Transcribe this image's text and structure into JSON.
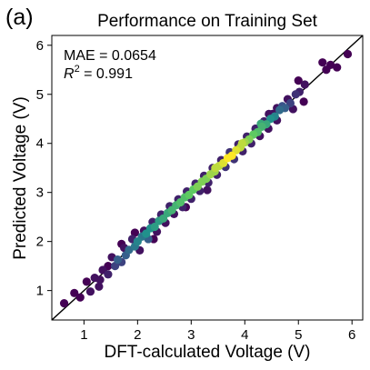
{
  "chart_data": {
    "type": "scatter",
    "panel_label": "(a)",
    "title": "Performance on Training Set",
    "xlabel": "DFT-calculated Voltage (V)",
    "ylabel": "Predicted Voltage (V)",
    "xlim": [
      0.4,
      6.2
    ],
    "ylim": [
      0.4,
      6.2
    ],
    "xticks": [
      1,
      2,
      3,
      4,
      5,
      6
    ],
    "yticks": [
      1,
      2,
      3,
      4,
      5,
      6
    ],
    "annotations": {
      "mae": "MAE = 0.0654",
      "r2_symbol": "R",
      "r2_exponent": "2",
      "r2_value": " = 0.991"
    },
    "parity_line": {
      "from": [
        0.4,
        0.4
      ],
      "to": [
        6.2,
        6.2
      ]
    },
    "grid": false,
    "legend": "none",
    "colormap": "viridis (point density)",
    "colors": {
      "low_density": "#440154",
      "mid_low": "#3b528b",
      "mid": "#21918c",
      "mid_high": "#5ec962",
      "high_density": "#fde725",
      "parity_line": "#000000"
    },
    "series": [
      {
        "points": [
          {
            "x": 0.63,
            "y": 0.74,
            "d": 0.0
          },
          {
            "x": 0.82,
            "y": 0.95,
            "d": 0.0
          },
          {
            "x": 0.93,
            "y": 0.86,
            "d": 0.0
          },
          {
            "x": 1.05,
            "y": 1.18,
            "d": 0.0
          },
          {
            "x": 1.12,
            "y": 0.98,
            "d": 0.05
          },
          {
            "x": 1.2,
            "y": 1.26,
            "d": 0.05
          },
          {
            "x": 1.28,
            "y": 1.08,
            "d": 0.05
          },
          {
            "x": 1.35,
            "y": 1.42,
            "d": 0.05
          },
          {
            "x": 1.45,
            "y": 1.33,
            "d": 0.1
          },
          {
            "x": 1.52,
            "y": 1.68,
            "d": 0.05
          },
          {
            "x": 1.58,
            "y": 1.5,
            "d": 0.2
          },
          {
            "x": 1.63,
            "y": 1.63,
            "d": 0.3
          },
          {
            "x": 1.7,
            "y": 1.58,
            "d": 0.2
          },
          {
            "x": 1.75,
            "y": 1.87,
            "d": 0.05
          },
          {
            "x": 1.78,
            "y": 1.72,
            "d": 0.3
          },
          {
            "x": 1.84,
            "y": 1.83,
            "d": 0.35
          },
          {
            "x": 1.9,
            "y": 2.05,
            "d": 0.1
          },
          {
            "x": 1.95,
            "y": 1.9,
            "d": 0.4
          },
          {
            "x": 2.0,
            "y": 2.0,
            "d": 0.45
          },
          {
            "x": 2.04,
            "y": 1.82,
            "d": 0.05
          },
          {
            "x": 2.08,
            "y": 2.1,
            "d": 0.4
          },
          {
            "x": 2.12,
            "y": 2.22,
            "d": 0.05
          },
          {
            "x": 2.16,
            "y": 2.16,
            "d": 0.5
          },
          {
            "x": 2.2,
            "y": 2.05,
            "d": 0.3
          },
          {
            "x": 2.24,
            "y": 2.27,
            "d": 0.5
          },
          {
            "x": 2.28,
            "y": 2.4,
            "d": 0.1
          },
          {
            "x": 2.32,
            "y": 2.3,
            "d": 0.55
          },
          {
            "x": 2.36,
            "y": 2.2,
            "d": 0.05
          },
          {
            "x": 2.4,
            "y": 2.42,
            "d": 0.55
          },
          {
            "x": 2.44,
            "y": 2.55,
            "d": 0.1
          },
          {
            "x": 2.48,
            "y": 2.47,
            "d": 0.6
          },
          {
            "x": 2.52,
            "y": 2.38,
            "d": 0.05
          },
          {
            "x": 2.56,
            "y": 2.58,
            "d": 0.6
          },
          {
            "x": 2.6,
            "y": 2.72,
            "d": 0.1
          },
          {
            "x": 2.64,
            "y": 2.64,
            "d": 0.65
          },
          {
            "x": 2.68,
            "y": 2.56,
            "d": 0.05
          },
          {
            "x": 2.72,
            "y": 2.74,
            "d": 0.65
          },
          {
            "x": 2.76,
            "y": 2.86,
            "d": 0.1
          },
          {
            "x": 2.8,
            "y": 2.8,
            "d": 0.7
          },
          {
            "x": 2.84,
            "y": 2.7,
            "d": 0.1
          },
          {
            "x": 2.88,
            "y": 2.9,
            "d": 0.7
          },
          {
            "x": 2.92,
            "y": 3.02,
            "d": 0.1
          },
          {
            "x": 2.96,
            "y": 2.95,
            "d": 0.75
          },
          {
            "x": 3.0,
            "y": 2.87,
            "d": 0.1
          },
          {
            "x": 3.04,
            "y": 3.06,
            "d": 0.75
          },
          {
            "x": 3.08,
            "y": 3.18,
            "d": 0.1
          },
          {
            "x": 3.12,
            "y": 3.12,
            "d": 0.8
          },
          {
            "x": 3.16,
            "y": 3.03,
            "d": 0.1
          },
          {
            "x": 3.2,
            "y": 3.22,
            "d": 0.8
          },
          {
            "x": 3.24,
            "y": 3.34,
            "d": 0.1
          },
          {
            "x": 3.28,
            "y": 3.28,
            "d": 0.8
          },
          {
            "x": 3.32,
            "y": 3.2,
            "d": 0.1
          },
          {
            "x": 3.36,
            "y": 3.37,
            "d": 0.85
          },
          {
            "x": 3.4,
            "y": 3.5,
            "d": 0.1
          },
          {
            "x": 3.44,
            "y": 3.43,
            "d": 0.85
          },
          {
            "x": 3.48,
            "y": 3.36,
            "d": 0.1
          },
          {
            "x": 3.52,
            "y": 3.54,
            "d": 0.9
          },
          {
            "x": 3.56,
            "y": 3.66,
            "d": 0.1
          },
          {
            "x": 3.6,
            "y": 3.6,
            "d": 0.95
          },
          {
            "x": 3.64,
            "y": 3.52,
            "d": 0.15
          },
          {
            "x": 3.68,
            "y": 3.7,
            "d": 1.0
          },
          {
            "x": 3.72,
            "y": 3.82,
            "d": 0.15
          },
          {
            "x": 3.76,
            "y": 3.75,
            "d": 1.0
          },
          {
            "x": 3.8,
            "y": 3.68,
            "d": 0.15
          },
          {
            "x": 3.84,
            "y": 3.86,
            "d": 0.95
          },
          {
            "x": 3.88,
            "y": 3.98,
            "d": 0.1
          },
          {
            "x": 3.92,
            "y": 3.92,
            "d": 0.9
          },
          {
            "x": 3.96,
            "y": 3.84,
            "d": 0.1
          },
          {
            "x": 4.0,
            "y": 4.02,
            "d": 0.85
          },
          {
            "x": 4.04,
            "y": 4.14,
            "d": 0.1
          },
          {
            "x": 4.08,
            "y": 4.08,
            "d": 0.8
          },
          {
            "x": 4.12,
            "y": 4.0,
            "d": 0.1
          },
          {
            "x": 4.16,
            "y": 4.18,
            "d": 0.75
          },
          {
            "x": 4.2,
            "y": 4.3,
            "d": 0.1
          },
          {
            "x": 4.24,
            "y": 4.23,
            "d": 0.7
          },
          {
            "x": 4.28,
            "y": 4.15,
            "d": 0.05
          },
          {
            "x": 4.32,
            "y": 4.34,
            "d": 0.65
          },
          {
            "x": 4.36,
            "y": 4.45,
            "d": 0.1
          },
          {
            "x": 4.4,
            "y": 4.39,
            "d": 0.6
          },
          {
            "x": 4.44,
            "y": 4.3,
            "d": 0.05
          },
          {
            "x": 4.48,
            "y": 4.5,
            "d": 0.5
          },
          {
            "x": 4.52,
            "y": 4.6,
            "d": 0.05
          },
          {
            "x": 4.56,
            "y": 4.55,
            "d": 0.45
          },
          {
            "x": 4.6,
            "y": 4.47,
            "d": 0.05
          },
          {
            "x": 4.65,
            "y": 4.68,
            "d": 0.35
          },
          {
            "x": 4.7,
            "y": 4.76,
            "d": 0.25
          },
          {
            "x": 4.75,
            "y": 4.72,
            "d": 0.3
          },
          {
            "x": 4.8,
            "y": 4.9,
            "d": 0.05
          },
          {
            "x": 4.85,
            "y": 4.82,
            "d": 0.2
          },
          {
            "x": 4.9,
            "y": 4.7,
            "d": 0.05
          },
          {
            "x": 4.95,
            "y": 5.0,
            "d": 0.15
          },
          {
            "x": 5.02,
            "y": 5.05,
            "d": 0.1
          },
          {
            "x": 5.1,
            "y": 4.85,
            "d": 0.0
          },
          {
            "x": 5.12,
            "y": 5.2,
            "d": 0.05
          },
          {
            "x": 4.6,
            "y": 4.72,
            "d": 0.05
          },
          {
            "x": 4.45,
            "y": 4.6,
            "d": 0.05
          },
          {
            "x": 3.3,
            "y": 3.05,
            "d": 0.05
          },
          {
            "x": 2.9,
            "y": 2.7,
            "d": 0.0
          },
          {
            "x": 2.3,
            "y": 2.05,
            "d": 0.0
          },
          {
            "x": 1.95,
            "y": 2.18,
            "d": 0.0
          },
          {
            "x": 1.7,
            "y": 1.95,
            "d": 0.0
          },
          {
            "x": 1.45,
            "y": 1.5,
            "d": 0.0
          },
          {
            "x": 1.3,
            "y": 1.22,
            "d": 0.05
          },
          {
            "x": 5.0,
            "y": 5.28,
            "d": 0.0
          },
          {
            "x": 5.45,
            "y": 5.65,
            "d": 0.0
          },
          {
            "x": 5.52,
            "y": 5.5,
            "d": 0.0
          },
          {
            "x": 5.6,
            "y": 5.6,
            "d": 0.0
          },
          {
            "x": 5.72,
            "y": 5.55,
            "d": 0.0
          },
          {
            "x": 5.92,
            "y": 5.82,
            "d": 0.0
          },
          {
            "x": 4.3,
            "y": 4.4,
            "d": 0.6
          },
          {
            "x": 3.95,
            "y": 4.0,
            "d": 0.9
          },
          {
            "x": 3.45,
            "y": 3.5,
            "d": 0.9
          }
        ]
      }
    ]
  }
}
